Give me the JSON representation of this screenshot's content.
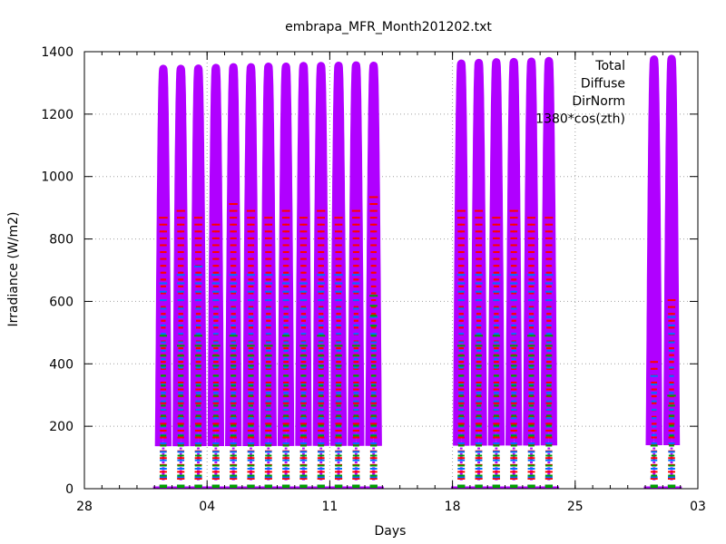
{
  "chart_data": {
    "type": "line",
    "title": "embrapa_MFR_Month201202.txt",
    "xlabel": "Days",
    "ylabel": "Irradiance (W/m2)",
    "ylim": [
      0,
      1400
    ],
    "xlim": [
      "2012-01-28",
      "2012-03-03"
    ],
    "x_tick_labels": [
      "28",
      "04",
      "11",
      "18",
      "25",
      "03"
    ],
    "y_ticks": [
      0,
      200,
      400,
      600,
      800,
      1000,
      1200,
      1400
    ],
    "grid": true,
    "legend_position": "top-right",
    "legend": [
      "Total",
      "Diffuse",
      "DirNorm",
      "1380*cos(zth)"
    ],
    "series_colors": {
      "Total": "#ff0000",
      "Diffuse": "#00a000",
      "DirNorm": "#0070ff",
      "1380*cos(zth)": "#b000ff"
    },
    "days": [
      {
        "date": "2012-02-01",
        "peak": 1345,
        "total_peak": 870,
        "diffuse_peak": 520,
        "dirnorm_peak": 680
      },
      {
        "date": "2012-02-02",
        "peak": 1345,
        "total_peak": 900,
        "diffuse_peak": 480,
        "dirnorm_peak": 700
      },
      {
        "date": "2012-02-03",
        "peak": 1346,
        "total_peak": 880,
        "diffuse_peak": 500,
        "dirnorm_peak": 720
      },
      {
        "date": "2012-02-04",
        "peak": 1348,
        "total_peak": 860,
        "diffuse_peak": 460,
        "dirnorm_peak": 690
      },
      {
        "date": "2012-02-05",
        "peak": 1350,
        "total_peak": 920,
        "diffuse_peak": 500,
        "dirnorm_peak": 710
      },
      {
        "date": "2012-02-06",
        "peak": 1350,
        "total_peak": 900,
        "diffuse_peak": 480,
        "dirnorm_peak": 700
      },
      {
        "date": "2012-02-07",
        "peak": 1352,
        "total_peak": 880,
        "diffuse_peak": 460,
        "dirnorm_peak": 690
      },
      {
        "date": "2012-02-08",
        "peak": 1352,
        "total_peak": 910,
        "diffuse_peak": 520,
        "dirnorm_peak": 700
      },
      {
        "date": "2012-02-09",
        "peak": 1354,
        "total_peak": 890,
        "diffuse_peak": 480,
        "dirnorm_peak": 680
      },
      {
        "date": "2012-02-10",
        "peak": 1354,
        "total_peak": 900,
        "diffuse_peak": 500,
        "dirnorm_peak": 700
      },
      {
        "date": "2012-02-11",
        "peak": 1355,
        "total_peak": 880,
        "diffuse_peak": 470,
        "dirnorm_peak": 690
      },
      {
        "date": "2012-02-12",
        "peak": 1356,
        "total_peak": 900,
        "diffuse_peak": 480,
        "dirnorm_peak": 700
      },
      {
        "date": "2012-02-13",
        "peak": 1355,
        "total_peak": 940,
        "diffuse_peak": 630,
        "dirnorm_peak": 560
      },
      {
        "date": "2012-02-18",
        "peak": 1362,
        "total_peak": 900,
        "diffuse_peak": 480,
        "dirnorm_peak": 700
      },
      {
        "date": "2012-02-19",
        "peak": 1364,
        "total_peak": 910,
        "diffuse_peak": 500,
        "dirnorm_peak": 710
      },
      {
        "date": "2012-02-20",
        "peak": 1366,
        "total_peak": 880,
        "diffuse_peak": 520,
        "dirnorm_peak": 690
      },
      {
        "date": "2012-02-21",
        "peak": 1367,
        "total_peak": 900,
        "diffuse_peak": 480,
        "dirnorm_peak": 700
      },
      {
        "date": "2012-02-22",
        "peak": 1368,
        "total_peak": 890,
        "diffuse_peak": 500,
        "dirnorm_peak": 710
      },
      {
        "date": "2012-02-23",
        "peak": 1370,
        "total_peak": 880,
        "diffuse_peak": 500,
        "dirnorm_peak": 690
      },
      {
        "date": "2012-02-29",
        "peak": 1375,
        "total_peak": 420,
        "diffuse_peak": 150,
        "dirnorm_peak": 380
      },
      {
        "date": "2012-03-01",
        "peak": 1377,
        "total_peak": 620,
        "diffuse_peak": 300,
        "dirnorm_peak": 560
      }
    ]
  }
}
